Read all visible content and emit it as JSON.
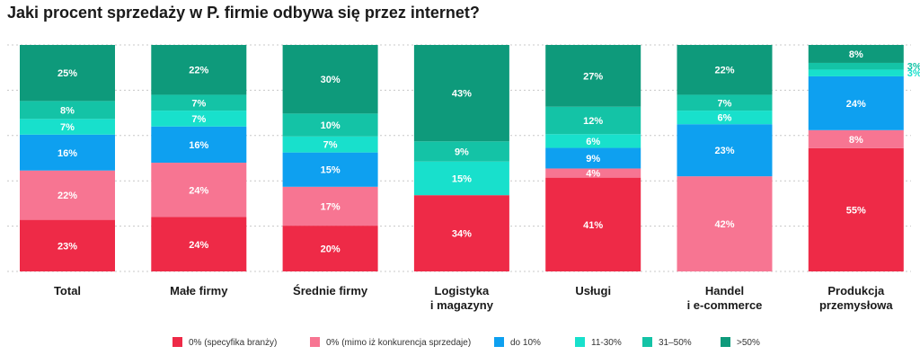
{
  "chart_data": {
    "type": "bar",
    "stacked": true,
    "title": "Jaki procent sprzedaży w P. firmie odbywa się przez internet?",
    "ylim": [
      0,
      100
    ],
    "grid": true,
    "legend_position": "bottom",
    "categories": [
      [
        "Total"
      ],
      [
        "Małe firmy"
      ],
      [
        "Średnie firmy"
      ],
      [
        "Logistyka",
        "i magazyny"
      ],
      [
        "Usługi"
      ],
      [
        "Handel",
        "i e-commerce"
      ],
      [
        "Produkcja",
        "przemysłowa"
      ]
    ],
    "series": [
      {
        "name": "0% (specyfika branży)",
        "color": "#ee2a47",
        "values": [
          23,
          24,
          20,
          34,
          41,
          0,
          55
        ]
      },
      {
        "name": "0% (mimo iż konkurencja sprzedaje)",
        "color": "#f77592",
        "values": [
          22,
          24,
          17,
          0,
          4,
          42,
          8
        ]
      },
      {
        "name": "do 10%",
        "color": "#0ea0f0",
        "values": [
          16,
          16,
          15,
          0,
          9,
          23,
          24
        ]
      },
      {
        "name": "11-30%",
        "color": "#18e0cc",
        "values": [
          7,
          7,
          7,
          15,
          6,
          6,
          3
        ]
      },
      {
        "name": "31–50%",
        "color": "#14c3a6",
        "values": [
          8,
          7,
          10,
          9,
          12,
          7,
          3
        ]
      },
      {
        "name": ">50%",
        "color": "#0e9a7b",
        "values": [
          25,
          22,
          30,
          43,
          27,
          22,
          8
        ]
      }
    ],
    "value_suffix": "%"
  }
}
